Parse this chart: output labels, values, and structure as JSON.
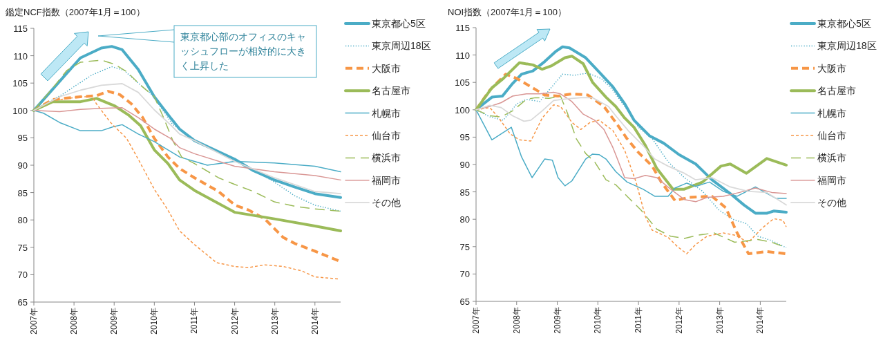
{
  "chart_data": [
    {
      "type": "line",
      "title": "鑑定NCF指数（2007年1月＝100）",
      "legend": "right",
      "xlim": [
        2007,
        2014.64
      ],
      "ylim": [
        65,
        115
      ],
      "xticks": [
        {
          "value": 2007,
          "label": "2007年"
        },
        {
          "value": 2008,
          "label": "2008年"
        },
        {
          "value": 2009,
          "label": "2009年"
        },
        {
          "value": 2010,
          "label": "2010年"
        },
        {
          "value": 2011,
          "label": "2011年"
        },
        {
          "value": 2012,
          "label": "2012年"
        },
        {
          "value": 2013,
          "label": "2013年"
        },
        {
          "value": 2014,
          "label": "2014年"
        }
      ],
      "yticks": [
        65,
        70,
        75,
        80,
        85,
        90,
        95,
        100,
        105,
        110,
        115
      ],
      "annotations": [
        "東京都心部のオフィスのキャッシュフローが相対的に大きく上昇した"
      ],
      "series": [
        {
          "name": "東京都心5区",
          "color": "#4bacc6",
          "line_style": "solid",
          "x": [
            2007,
            2007.7,
            2008.16,
            2008.68,
            2008.94,
            2009.2,
            2009.6,
            2010,
            2010.4,
            2010.63,
            2011,
            2012,
            2012.47,
            2012.99,
            2013.5,
            2014,
            2014.64
          ],
          "values": [
            100,
            105.8,
            109.6,
            111.4,
            111.7,
            111.1,
            107.5,
            102.5,
            98.7,
            96.6,
            94.5,
            91.1,
            89,
            87.3,
            86,
            84.8,
            84.1
          ]
        },
        {
          "name": "東京周辺18区",
          "color": "#4bacc6",
          "line_style": "dotted",
          "x": [
            2007,
            2007.7,
            2008.45,
            2008.94,
            2009.25,
            2009.6,
            2009.94,
            2010.45,
            2011,
            2012,
            2012.47,
            2012.99,
            2013.5,
            2014,
            2014.64
          ],
          "values": [
            100,
            102.9,
            106.5,
            108,
            107.3,
            105,
            102.9,
            97.5,
            94.5,
            91.1,
            89.2,
            86.9,
            84.4,
            82.7,
            81.6
          ]
        },
        {
          "name": "大阪市",
          "color": "#f79646",
          "line_style": "dashed",
          "x": [
            2007,
            2007.47,
            2008.16,
            2008.56,
            2008.85,
            2009.14,
            2009.43,
            2009.71,
            2010,
            2010.34,
            2010.63,
            2011,
            2011.6,
            2012.01,
            2012.35,
            2012.75,
            2013.21,
            2013.5,
            2014,
            2014.64
          ],
          "values": [
            100,
            102,
            102.5,
            102.7,
            103.5,
            102.9,
            101.2,
            98.7,
            94.9,
            91.5,
            89.4,
            87.7,
            85.2,
            82.7,
            81.8,
            80.2,
            76.8,
            75.7,
            74.3,
            72.4
          ]
        },
        {
          "name": "名古屋市",
          "color": "#9bbb59",
          "line_style": "solid",
          "x": [
            2007,
            2007.47,
            2008.16,
            2008.56,
            2009.02,
            2009.37,
            2009.66,
            2010,
            2010.34,
            2010.63,
            2011,
            2012,
            2012.99,
            2014,
            2014.64
          ],
          "values": [
            100,
            101.6,
            101.6,
            102.2,
            100.8,
            99.1,
            97.2,
            92.8,
            90.3,
            87.3,
            85.4,
            81.4,
            80.2,
            78.9,
            78
          ]
        },
        {
          "name": "札幌市",
          "color": "#4bacc6",
          "line_style": "solid",
          "x": [
            2007,
            2007.24,
            2007.64,
            2008.16,
            2008.68,
            2008.97,
            2009.2,
            2009.6,
            2010,
            2010.34,
            2010.63,
            2011,
            2011.32,
            2012,
            2012.99,
            2014,
            2014.64
          ],
          "values": [
            100,
            99.5,
            97.8,
            96.3,
            96.3,
            97,
            97.4,
            95.7,
            94.3,
            92.8,
            91.5,
            90.7,
            90,
            90.7,
            90.4,
            89.8,
            88.8
          ]
        },
        {
          "name": "仙台市",
          "color": "#f79646",
          "line_style": "dashed",
          "x": [
            2007,
            2007.47,
            2008.16,
            2008.45,
            2008.56,
            2008.91,
            2009.31,
            2009.6,
            2010,
            2010.34,
            2010.63,
            2011,
            2011.55,
            2012,
            2012.35,
            2012.75,
            2013.21,
            2013.67,
            2014,
            2014.6
          ],
          "values": [
            100,
            101.8,
            102.5,
            102.5,
            101.2,
            97.8,
            94.9,
            91.1,
            85.6,
            81.8,
            78,
            75.5,
            72.2,
            71.5,
            71.3,
            71.8,
            71.5,
            70.7,
            69.6,
            69.2
          ]
        },
        {
          "name": "横浜市",
          "color": "#9bbb59",
          "line_style": "dashed",
          "x": [
            2007,
            2007.47,
            2007.82,
            2008.16,
            2008.68,
            2009.02,
            2009.31,
            2009.66,
            2010,
            2010.23,
            2010.46,
            2010.68,
            2011,
            2011.6,
            2012,
            2012.47,
            2012.99,
            2013.5,
            2014,
            2014.64
          ],
          "values": [
            100,
            104.1,
            107.3,
            108.8,
            109.2,
            108.4,
            107.1,
            104.6,
            102.5,
            98.7,
            94.5,
            91.5,
            90.3,
            87.7,
            86.5,
            85.2,
            83.3,
            82.5,
            82,
            81.6
          ]
        },
        {
          "name": "福岡市",
          "color": "#d99694",
          "line_style": "solid",
          "x": [
            2007,
            2007.64,
            2008.16,
            2008.68,
            2009.2,
            2009.6,
            2010,
            2010.4,
            2010.63,
            2011,
            2012,
            2012.99,
            2014,
            2014.64
          ],
          "values": [
            100,
            99.8,
            100.2,
            100.4,
            100.5,
            98.7,
            96.6,
            94.9,
            93.2,
            92.1,
            89.8,
            88.8,
            88.1,
            87.3
          ]
        },
        {
          "name": "その他",
          "color": "#d9d9d9",
          "line_style": "solid",
          "x": [
            2007,
            2007.64,
            2008.16,
            2008.68,
            2009.2,
            2009.6,
            2010,
            2010.4,
            2010.63,
            2011,
            2012,
            2012.99,
            2014,
            2014.64
          ],
          "values": [
            100,
            102.5,
            103.7,
            104.6,
            104.9,
            103.3,
            100.1,
            97.4,
            95.7,
            94.5,
            90.7,
            87.7,
            85.2,
            84.8
          ]
        }
      ]
    },
    {
      "type": "line",
      "title": "NOI指数（2007年1月＝100）",
      "legend": "right",
      "xlim": [
        2007,
        2014.64
      ],
      "ylim": [
        65,
        115
      ],
      "xticks": [
        {
          "value": 2007,
          "label": "2007年"
        },
        {
          "value": 2008,
          "label": "2008年"
        },
        {
          "value": 2009,
          "label": "2009年"
        },
        {
          "value": 2010,
          "label": "2010年"
        },
        {
          "value": 2011,
          "label": "2011年"
        },
        {
          "value": 2012,
          "label": "2012年"
        },
        {
          "value": 2013,
          "label": "2013年"
        },
        {
          "value": 2014,
          "label": "2014年"
        }
      ],
      "yticks": [
        65,
        70,
        75,
        80,
        85,
        90,
        95,
        100,
        105,
        110,
        115
      ],
      "series": [
        {
          "name": "東京都心5区",
          "color": "#4bacc6",
          "line_style": "solid",
          "x": [
            2007,
            2007.39,
            2007.65,
            2007.9,
            2008.12,
            2008.4,
            2008.69,
            2008.97,
            2009.13,
            2009.3,
            2009.7,
            2010.03,
            2010.37,
            2010.66,
            2010.89,
            2011.28,
            2011.62,
            2012,
            2012.41,
            2012.81,
            2013.26,
            2013.6,
            2013.88,
            2014.16,
            2014.33,
            2014.64
          ],
          "values": [
            100,
            102.3,
            102.5,
            104.8,
            106.5,
            107.1,
            108.8,
            110.7,
            111.5,
            111.3,
            109.5,
            106.9,
            104.2,
            101.1,
            98.1,
            95.2,
            93.9,
            91.8,
            90.1,
            87.2,
            84.7,
            82.6,
            81.1,
            81.1,
            81.5,
            81.3
          ]
        },
        {
          "name": "東京周辺18区",
          "color": "#4bacc6",
          "line_style": "dotted",
          "x": [
            2007,
            2007.34,
            2007.67,
            2008.01,
            2008.24,
            2008.57,
            2008.8,
            2009.13,
            2009.42,
            2009.75,
            2010.09,
            2010.37,
            2010.66,
            2011,
            2011.34,
            2011.73,
            2012.13,
            2012.58,
            2012.98,
            2013.32,
            2013.66,
            2013.94,
            2014.28,
            2014.64
          ],
          "values": [
            100,
            98.7,
            98.1,
            101.1,
            101.9,
            101.5,
            103.6,
            106.5,
            106.3,
            106.7,
            105.7,
            103.6,
            100.6,
            96.8,
            94.7,
            90.5,
            87.6,
            85.1,
            81.7,
            80,
            79.2,
            76.9,
            76.1,
            74.8
          ]
        },
        {
          "name": "大阪市",
          "color": "#f79646",
          "line_style": "dashed",
          "x": [
            2007,
            2007.34,
            2007.73,
            2008.01,
            2008.35,
            2008.69,
            2009.02,
            2009.36,
            2009.75,
            2010.15,
            2010.44,
            2010.72,
            2011,
            2011.34,
            2011.56,
            2011.9,
            2012.24,
            2012.81,
            2013.15,
            2013.43,
            2013.71,
            2014.16,
            2014.64
          ],
          "values": [
            100,
            103.6,
            106.5,
            105.7,
            104.2,
            102.7,
            102.5,
            102.9,
            102.7,
            100.6,
            97.7,
            94.7,
            92.2,
            89.7,
            86.8,
            83.4,
            84,
            84.2,
            82.1,
            77.5,
            73.7,
            74.1,
            73.7
          ]
        },
        {
          "name": "名古屋市",
          "color": "#9bbb59",
          "line_style": "solid",
          "x": [
            2007,
            2007.39,
            2007.67,
            2008.07,
            2008.4,
            2008.63,
            2008.85,
            2009.19,
            2009.36,
            2009.64,
            2009.87,
            2010.2,
            2010.44,
            2010.66,
            2010.89,
            2011.17,
            2011.45,
            2011.85,
            2012.13,
            2012.58,
            2013.03,
            2013.26,
            2013.66,
            2014.16,
            2014.64
          ],
          "values": [
            100,
            104,
            105.7,
            108.6,
            108.2,
            107.4,
            108,
            109.5,
            109.8,
            108.4,
            105,
            102.3,
            100.6,
            98.5,
            96.8,
            93.5,
            89.3,
            85.5,
            85.5,
            86.8,
            89.7,
            90.1,
            88.4,
            91.1,
            89.9
          ]
        },
        {
          "name": "札幌市",
          "color": "#4bacc6",
          "line_style": "solid",
          "x": [
            2007,
            2007.39,
            2007.62,
            2007.87,
            2008.12,
            2008.38,
            2008.69,
            2008.88,
            2009.02,
            2009.19,
            2009.36,
            2009.7,
            2009.87,
            2010.03,
            2010.2,
            2010.44,
            2010.72,
            2011.11,
            2011.4,
            2011.73,
            2011.9,
            2012.19,
            2012.41,
            2012.75,
            2013.09,
            2013.43,
            2013.88,
            2014.39,
            2014.64
          ],
          "values": [
            100,
            94.5,
            95.6,
            96.8,
            91.4,
            87.6,
            91,
            90.8,
            87.6,
            86.1,
            87,
            91,
            91.9,
            91.8,
            91,
            88.7,
            86.8,
            85.5,
            84.2,
            84.2,
            85.7,
            86.6,
            86,
            86.8,
            85.1,
            84.2,
            85.9,
            83.8,
            83.8
          ]
        },
        {
          "name": "仙台市",
          "color": "#f79646",
          "line_style": "dashed",
          "x": [
            2007,
            2007.34,
            2007.56,
            2007.84,
            2008.07,
            2008.35,
            2008.63,
            2008.91,
            2009.08,
            2009.36,
            2009.58,
            2009.81,
            2010.03,
            2010.37,
            2010.66,
            2010.94,
            2011.17,
            2011.34,
            2011.73,
            2011.96,
            2012.19,
            2012.41,
            2012.69,
            2013.09,
            2013.37,
            2013.71,
            2014.05,
            2014.33,
            2014.56,
            2014.64
          ],
          "values": [
            100,
            100.4,
            98.5,
            95.6,
            94.5,
            94.3,
            98.5,
            100.9,
            100.6,
            97.7,
            96.4,
            97.7,
            98.1,
            96.2,
            92.6,
            86.8,
            80.5,
            78,
            76.7,
            75,
            73.7,
            75.4,
            76.9,
            77.5,
            77.1,
            75.8,
            78.4,
            80.1,
            79.8,
            78.6
          ]
        },
        {
          "name": "横浜市",
          "color": "#9bbb59",
          "line_style": "dashed",
          "x": [
            2007,
            2007.34,
            2007.62,
            2007.9,
            2008.24,
            2008.46,
            2008.8,
            2009.08,
            2009.25,
            2009.47,
            2009.7,
            2009.92,
            2010.2,
            2010.44,
            2010.72,
            2011.06,
            2011.45,
            2011.79,
            2012.13,
            2012.47,
            2012.86,
            2013.37,
            2013.94,
            2014.28,
            2014.64
          ],
          "values": [
            100,
            98.9,
            98.7,
            99.8,
            101.9,
            102.2,
            102.1,
            102.5,
            99.4,
            94.7,
            92,
            90.5,
            87.2,
            86.3,
            84.2,
            81.7,
            78.2,
            76.9,
            76.5,
            77.1,
            77.5,
            75.8,
            76.3,
            75.8,
            74.8
          ]
        },
        {
          "name": "福岡市",
          "color": "#d99694",
          "line_style": "solid",
          "x": [
            2007,
            2007.34,
            2007.62,
            2007.9,
            2008.24,
            2008.57,
            2008.91,
            2009.08,
            2009.36,
            2009.64,
            2009.92,
            2010.15,
            2010.37,
            2010.44,
            2010.66,
            2010.89,
            2011.17,
            2011.45,
            2011.79,
            2012.13,
            2012.41,
            2012.69,
            2013.09,
            2013.49,
            2013.88,
            2014.28,
            2014.64
          ],
          "values": [
            100,
            100.6,
            101.3,
            102.5,
            102.9,
            102.9,
            103.2,
            102.9,
            101.5,
            99.2,
            98.1,
            96.4,
            93.1,
            91.8,
            87.6,
            87.4,
            88,
            87.6,
            85.5,
            83.6,
            83.2,
            84,
            84.2,
            84.9,
            85.7,
            84.9,
            84.7
          ]
        },
        {
          "name": "その他",
          "color": "#d9d9d9",
          "line_style": "solid",
          "x": [
            2007,
            2007.34,
            2007.62,
            2007.9,
            2008.18,
            2008.35,
            2008.63,
            2008.91,
            2009.25,
            2009.58,
            2009.87,
            2010.26,
            2010.44,
            2010.77,
            2011.11,
            2011.4,
            2011.73,
            2012.13,
            2012.41,
            2012.81,
            2013.26,
            2013.71,
            2014.16,
            2014.64
          ],
          "values": [
            100,
            100.8,
            100.4,
            98.9,
            97.9,
            98.1,
            99.8,
            101.7,
            102,
            102.2,
            102.2,
            100.6,
            98.9,
            96,
            93.5,
            91,
            89.7,
            88.4,
            87.2,
            87.6,
            85.9,
            85.1,
            84.9,
            82.6
          ]
        }
      ]
    }
  ]
}
